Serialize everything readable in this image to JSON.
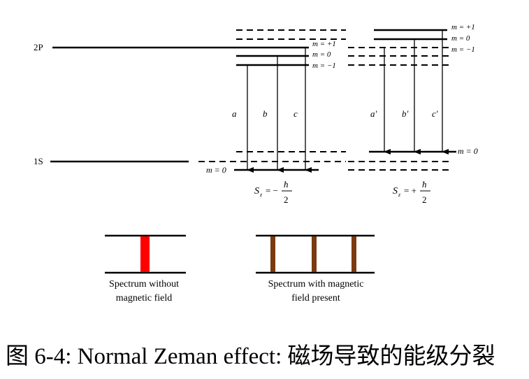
{
  "levels": {
    "upper_label": "2P",
    "lower_label": "1S"
  },
  "left_group": {
    "m_labels": [
      "m = +1",
      "m = 0",
      "m = −1"
    ],
    "ground_label": "m = 0",
    "transitions": [
      "a",
      "b",
      "c"
    ],
    "spin": {
      "prefix": "S",
      "sub": "z",
      "sign": "= −",
      "numerator": "ħ",
      "denominator": "2"
    }
  },
  "right_group": {
    "m_labels": [
      "m = +1",
      "m = 0",
      "m = −1"
    ],
    "ground_label": "m = 0",
    "transitions": [
      "a'",
      "b'",
      "c'"
    ],
    "spin": {
      "prefix": "S",
      "sub": "z",
      "sign": "= +",
      "numerator": "ħ",
      "denominator": "2"
    }
  },
  "spectra": {
    "without_field_caption": [
      "Spectrum without",
      "magnetic field"
    ],
    "with_field_caption": [
      "Spectrum with magnetic",
      "field present"
    ],
    "without_field_lines": 1,
    "with_field_lines": 3,
    "colors": {
      "single": "#ff0000",
      "split": "#7b3a10"
    }
  },
  "caption": "图 6-4: Normal Zeman effect: 磁场导致的能级分裂"
}
